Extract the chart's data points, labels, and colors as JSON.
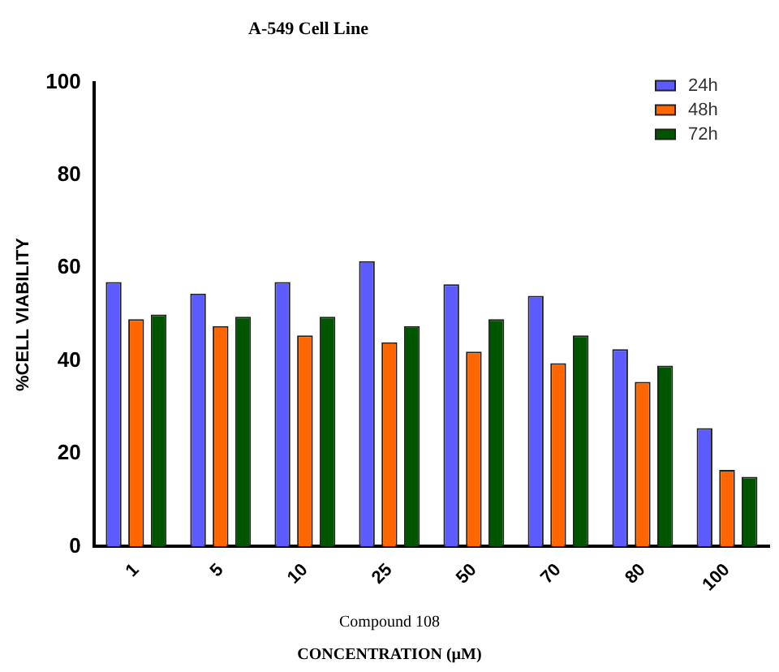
{
  "chart_data": {
    "type": "bar",
    "title": "A-549 Cell Line",
    "xlabel": "CONCENTRATION (µM)",
    "ylabel": "%CELL VIABILITY",
    "annotations": [
      "Compound 108"
    ],
    "categories": [
      "1",
      "5",
      "10",
      "25",
      "50",
      "70",
      "80",
      "100"
    ],
    "series": [
      {
        "name": "24h",
        "color": "#5b5bff",
        "values": [
          57,
          54.5,
          57,
          61.5,
          56.5,
          54,
          42.5,
          25.5
        ]
      },
      {
        "name": "48h",
        "color": "#ff6600",
        "values": [
          49,
          47.5,
          45.5,
          44,
          42,
          39.5,
          35.5,
          16.5
        ]
      },
      {
        "name": "72h",
        "color": "#005500",
        "values": [
          50,
          49.5,
          49.5,
          47.5,
          49,
          45.5,
          39,
          15
        ]
      }
    ],
    "ylim": [
      0,
      100
    ],
    "yticks": [
      0,
      20,
      40,
      60,
      80,
      100
    ],
    "grid": false,
    "legend": "top right"
  }
}
